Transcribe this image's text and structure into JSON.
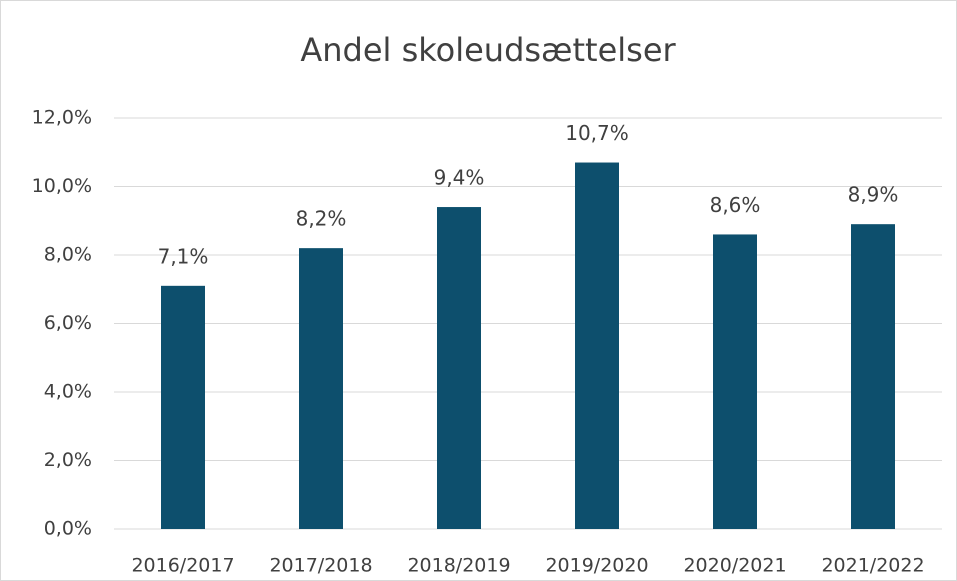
{
  "chart_data": {
    "type": "bar",
    "title": "Andel skoleudsættelser",
    "categories": [
      "2016/2017",
      "2017/2018",
      "2018/2019",
      "2019/2020",
      "2020/2021",
      "2021/2022"
    ],
    "values": [
      7.1,
      8.2,
      9.4,
      10.7,
      8.6,
      8.9
    ],
    "value_labels": [
      "7,1%",
      "8,2%",
      "9,4%",
      "10,7%",
      "8,6%",
      "8,9%"
    ],
    "color": "#0d4f6d",
    "ylim": [
      0,
      12
    ],
    "yticks": [
      {
        "value": 0,
        "label": "0,0%"
      },
      {
        "value": 2,
        "label": "2,0%"
      },
      {
        "value": 4,
        "label": "4,0%"
      },
      {
        "value": 6,
        "label": "6,0%"
      },
      {
        "value": 8,
        "label": "8,0%"
      },
      {
        "value": 10,
        "label": "10,0%"
      },
      {
        "value": 12,
        "label": "12,0%"
      }
    ],
    "grid": true
  }
}
